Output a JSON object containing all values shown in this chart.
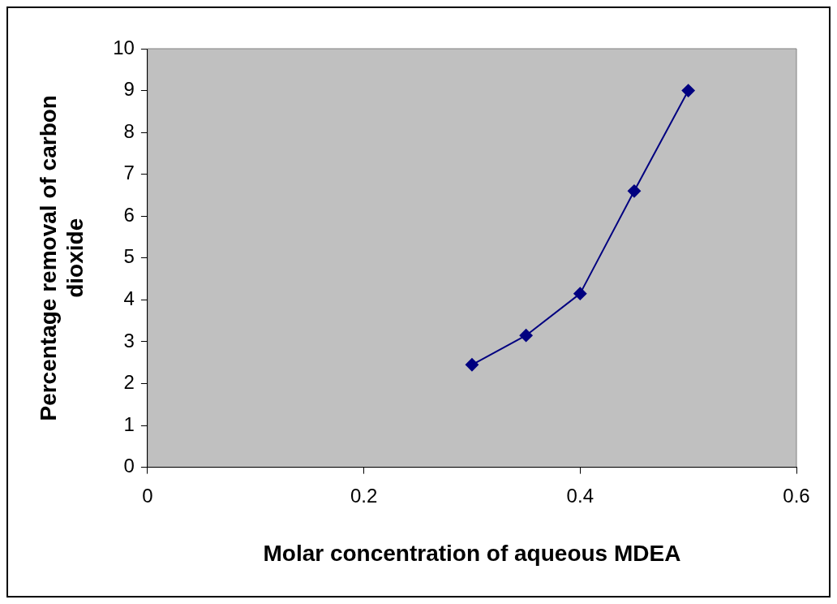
{
  "chart_data": {
    "type": "line",
    "xlabel": "Molar concentration of aqueous MDEA",
    "ylabel": "Percentage removal of carbon dioxide",
    "x": [
      0.3,
      0.35,
      0.4,
      0.45,
      0.5
    ],
    "series": [
      {
        "color": "#000080",
        "values": [
          2.45,
          3.15,
          4.15,
          6.6,
          9.0
        ]
      }
    ],
    "xlim": [
      0,
      0.6
    ],
    "xticks": [
      0,
      0.2,
      0.4,
      0.6
    ],
    "ylim": [
      0,
      10
    ],
    "yticks": [
      0,
      1,
      2,
      3,
      4,
      5,
      6,
      7,
      8,
      9,
      10
    ],
    "grid": false,
    "legend": false,
    "marker": "diamond",
    "line_style": "solid"
  }
}
